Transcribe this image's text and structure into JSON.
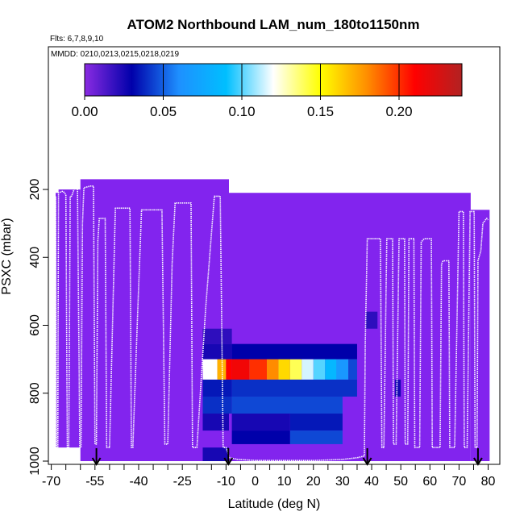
{
  "chart_data": {
    "type": "heatmap",
    "title": "ATOM2 Northbound LAM_num_180to1150nm",
    "flights_label": "Flts: 6,7,8,9,10",
    "mmdd_label": "MMDD: 0210,0213,0215,0218,0219",
    "xlabel": "Latitude (deg N)",
    "ylabel": "PSXC (mbar)",
    "xlim": [
      -71,
      84
    ],
    "ylim": [
      1000,
      50
    ],
    "x_ticks": [
      -70,
      -55,
      -40,
      -25,
      -10,
      0,
      10,
      20,
      30,
      40,
      50,
      60,
      70,
      80
    ],
    "x_tick_labels": [
      "-70",
      "-55",
      "-40",
      "-25",
      "-10",
      "0",
      "10",
      "20",
      "30",
      "40",
      "50",
      "60",
      "70",
      "80"
    ],
    "x_minor_ticks": [
      -65,
      -60,
      -50,
      -45,
      -35,
      -30,
      -20,
      -15,
      -5,
      5,
      15,
      25,
      35,
      45,
      55,
      65,
      75
    ],
    "y_ticks": [
      200,
      400,
      600,
      800,
      1000
    ],
    "y_tick_labels": [
      "200",
      "400",
      "600",
      "800",
      "1000"
    ],
    "colorbar": {
      "range": [
        0,
        0.24
      ],
      "ticks": [
        0,
        0.05,
        0.1,
        0.15,
        0.2
      ],
      "tick_labels": [
        "0.00",
        "0.05",
        "0.10",
        "0.15",
        "0.20"
      ],
      "colors": [
        "#8a2be2",
        "#0000aa",
        "#1e90ff",
        "#00bfff",
        "#ffffff",
        "#ffff00",
        "#ff8c00",
        "#ff0000",
        "#b22222"
      ]
    },
    "background_color": "#8224ee",
    "background_blocks": [
      {
        "x0": -68.5,
        "x1": -67.5,
        "p_top": 210,
        "p_bottom": 960
      },
      {
        "x0": -67.5,
        "x1": -60,
        "p_top": 200,
        "p_bottom": 960
      },
      {
        "x0": -60,
        "x1": -9,
        "p_top": 170,
        "p_bottom": 1000
      },
      {
        "x0": -9,
        "x1": 74,
        "p_top": 210,
        "p_bottom": 1000
      },
      {
        "x0": 74,
        "x1": 80.5,
        "p_top": 260,
        "p_bottom": 1000
      }
    ],
    "heat_cells": [
      {
        "x0": -18,
        "x1": -8,
        "p_top": 610,
        "p_bottom": 655,
        "v": 0.02
      },
      {
        "x0": -18,
        "x1": -8,
        "p_top": 655,
        "p_bottom": 700,
        "v": 0.025
      },
      {
        "x0": -8,
        "x1": 35,
        "p_top": 655,
        "p_bottom": 700,
        "v": 0.03
      },
      {
        "x0": -18,
        "x1": -13,
        "p_top": 700,
        "p_bottom": 760,
        "v": 0.12
      },
      {
        "x0": -13,
        "x1": -10,
        "p_top": 700,
        "p_bottom": 760,
        "v": 0.17
      },
      {
        "x0": -10,
        "x1": -8,
        "p_top": 700,
        "p_bottom": 760,
        "v": 0.21
      },
      {
        "x0": -8,
        "x1": -2,
        "p_top": 700,
        "p_bottom": 760,
        "v": 0.215
      },
      {
        "x0": -2,
        "x1": 4,
        "p_top": 700,
        "p_bottom": 760,
        "v": 0.2
      },
      {
        "x0": 4,
        "x1": 8,
        "p_top": 700,
        "p_bottom": 760,
        "v": 0.18
      },
      {
        "x0": 8,
        "x1": 12,
        "p_top": 700,
        "p_bottom": 760,
        "v": 0.16
      },
      {
        "x0": 12,
        "x1": 16,
        "p_top": 700,
        "p_bottom": 760,
        "v": 0.14
      },
      {
        "x0": 16,
        "x1": 20,
        "p_top": 700,
        "p_bottom": 760,
        "v": 0.115
      },
      {
        "x0": 20,
        "x1": 24,
        "p_top": 700,
        "p_bottom": 760,
        "v": 0.1
      },
      {
        "x0": 24,
        "x1": 28,
        "p_top": 700,
        "p_bottom": 760,
        "v": 0.085
      },
      {
        "x0": 28,
        "x1": 32,
        "p_top": 700,
        "p_bottom": 760,
        "v": 0.065
      },
      {
        "x0": 32,
        "x1": 35,
        "p_top": 700,
        "p_bottom": 760,
        "v": 0.045
      },
      {
        "x0": -18,
        "x1": -8,
        "p_top": 760,
        "p_bottom": 810,
        "v": 0.035
      },
      {
        "x0": -8,
        "x1": 35,
        "p_top": 760,
        "p_bottom": 810,
        "v": 0.04
      },
      {
        "x0": -18,
        "x1": -8,
        "p_top": 810,
        "p_bottom": 860,
        "v": 0.04
      },
      {
        "x0": -8,
        "x1": 30,
        "p_top": 810,
        "p_bottom": 860,
        "v": 0.045
      },
      {
        "x0": -18,
        "x1": -9,
        "p_top": 860,
        "p_bottom": 910,
        "v": 0.025
      },
      {
        "x0": -8,
        "x1": 12,
        "p_top": 860,
        "p_bottom": 910,
        "v": 0.025
      },
      {
        "x0": 12,
        "x1": 30,
        "p_top": 860,
        "p_bottom": 910,
        "v": 0.035
      },
      {
        "x0": -8,
        "x1": 12,
        "p_top": 910,
        "p_bottom": 950,
        "v": 0.03
      },
      {
        "x0": 12,
        "x1": 30,
        "p_top": 910,
        "p_bottom": 950,
        "v": 0.045
      },
      {
        "x0": -18,
        "x1": -9,
        "p_top": 960,
        "p_bottom": 1000,
        "v": 0.025
      },
      {
        "x0": 38,
        "x1": 42,
        "p_top": 560,
        "p_bottom": 610,
        "v": 0.02
      },
      {
        "x0": 48,
        "x1": 50,
        "p_top": 760,
        "p_bottom": 810,
        "v": 0.025
      }
    ],
    "flight_track": [
      [
        -68.5,
        960
      ],
      [
        -68.5,
        220
      ],
      [
        -68.2,
        960
      ],
      [
        -67.8,
        960
      ],
      [
        -67.5,
        210
      ],
      [
        -66,
        205
      ],
      [
        -65,
        215
      ],
      [
        -64.5,
        960
      ],
      [
        -64,
        960
      ],
      [
        -63.5,
        220
      ],
      [
        -63,
        220
      ],
      [
        -62,
        195
      ],
      [
        -61,
        195
      ],
      [
        -60.2,
        960
      ],
      [
        -59.8,
        960
      ],
      [
        -59.3,
        300
      ],
      [
        -58.8,
        195
      ],
      [
        -56.5,
        190
      ],
      [
        -55.5,
        190
      ],
      [
        -55,
        950
      ],
      [
        -54.5,
        950
      ],
      [
        -54,
        350
      ],
      [
        -53.5,
        285
      ],
      [
        -51.5,
        285
      ],
      [
        -51,
        960
      ],
      [
        -50,
        960
      ],
      [
        -48,
        255
      ],
      [
        -43,
        255
      ],
      [
        -42.5,
        960
      ],
      [
        -42,
        960
      ],
      [
        -40.5,
        600
      ],
      [
        -39,
        260
      ],
      [
        -32,
        260
      ],
      [
        -31,
        950
      ],
      [
        -30,
        950
      ],
      [
        -28.5,
        420
      ],
      [
        -27.5,
        240
      ],
      [
        -22,
        240
      ],
      [
        -21.5,
        960
      ],
      [
        -20,
        960
      ],
      [
        -17,
        550
      ],
      [
        -14,
        220
      ],
      [
        -12,
        220
      ],
      [
        -11,
        960
      ],
      [
        -10,
        960
      ],
      [
        -8.8,
        990
      ],
      [
        -6,
        995
      ],
      [
        0,
        998
      ],
      [
        10,
        998
      ],
      [
        20,
        998
      ],
      [
        30,
        995
      ],
      [
        35,
        990
      ],
      [
        37.5,
        985
      ],
      [
        37.8,
        650
      ],
      [
        38.5,
        345
      ],
      [
        40,
        345
      ],
      [
        43,
        345
      ],
      [
        43.5,
        960
      ],
      [
        44.2,
        960
      ],
      [
        45.2,
        345
      ],
      [
        47.2,
        345
      ],
      [
        47.5,
        950
      ],
      [
        48.4,
        950
      ],
      [
        49.4,
        345
      ],
      [
        51.3,
        345
      ],
      [
        51.5,
        950
      ],
      [
        52.4,
        950
      ],
      [
        52.8,
        345
      ],
      [
        54.5,
        345
      ],
      [
        54.8,
        960
      ],
      [
        56.5,
        960
      ],
      [
        57,
        355
      ],
      [
        58,
        345
      ],
      [
        60.5,
        345
      ],
      [
        60.8,
        960
      ],
      [
        63.5,
        960
      ],
      [
        64,
        420
      ],
      [
        64.5,
        410
      ],
      [
        66.5,
        410
      ],
      [
        66.8,
        960
      ],
      [
        68.5,
        960
      ],
      [
        70,
        265
      ],
      [
        71.5,
        265
      ],
      [
        71.8,
        960
      ],
      [
        72.8,
        960
      ],
      [
        73.8,
        265
      ],
      [
        75.2,
        265
      ],
      [
        75.5,
        960
      ],
      [
        76.2,
        960
      ],
      [
        76.5,
        410
      ],
      [
        77.5,
        380
      ],
      [
        78.2,
        300
      ],
      [
        79.5,
        285
      ],
      [
        80,
        290
      ]
    ],
    "arrows_lat": [
      -54.5,
      -9.2,
      38.5,
      76.5
    ]
  }
}
